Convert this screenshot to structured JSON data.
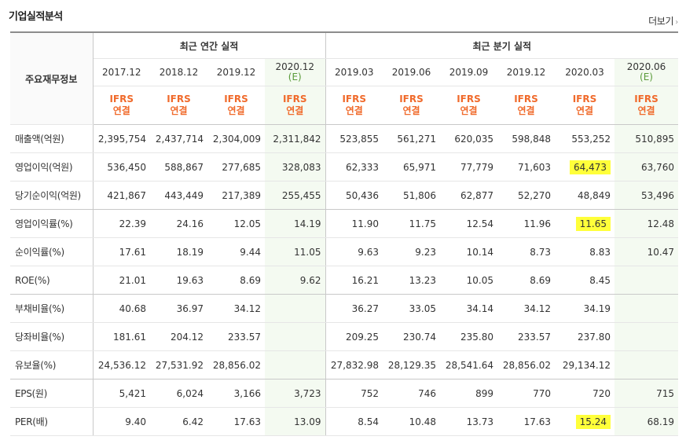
{
  "title": "기업실적분석",
  "more_label": "더보기",
  "header": {
    "row_label": "주요재무정보",
    "annual_label": "최근 연간 실적",
    "quarter_label": "최근 분기 실적",
    "columns": [
      {
        "date": "2017.12",
        "est": "",
        "ifrs": "IFRS",
        "type": "연결"
      },
      {
        "date": "2018.12",
        "est": "",
        "ifrs": "IFRS",
        "type": "연결"
      },
      {
        "date": "2019.12",
        "est": "",
        "ifrs": "IFRS",
        "type": "연결"
      },
      {
        "date": "2020.12",
        "est": "(E)",
        "ifrs": "IFRS",
        "type": "연결"
      },
      {
        "date": "2019.03",
        "est": "",
        "ifrs": "IFRS",
        "type": "연결"
      },
      {
        "date": "2019.06",
        "est": "",
        "ifrs": "IFRS",
        "type": "연결"
      },
      {
        "date": "2019.09",
        "est": "",
        "ifrs": "IFRS",
        "type": "연결"
      },
      {
        "date": "2019.12",
        "est": "",
        "ifrs": "IFRS",
        "type": "연결"
      },
      {
        "date": "2020.03",
        "est": "",
        "ifrs": "IFRS",
        "type": "연결"
      },
      {
        "date": "2020.06",
        "est": "(E)",
        "ifrs": "IFRS",
        "type": "연결"
      }
    ]
  },
  "rows": [
    {
      "label": "매출액(억원)",
      "values": [
        "2,395,754",
        "2,437,714",
        "2,304,009",
        "2,311,842",
        "523,855",
        "561,271",
        "620,035",
        "598,848",
        "553,252",
        "510,895"
      ]
    },
    {
      "label": "영업이익(억원)",
      "values": [
        "536,450",
        "588,867",
        "277,685",
        "328,083",
        "62,333",
        "65,971",
        "77,779",
        "71,603",
        "64,473",
        "63,760"
      ]
    },
    {
      "label": "당기순이익(억원)",
      "values": [
        "421,867",
        "443,449",
        "217,389",
        "255,455",
        "50,436",
        "51,806",
        "62,877",
        "52,270",
        "48,849",
        "53,496"
      ]
    },
    {
      "label": "영업이익률(%)",
      "values": [
        "22.39",
        "24.16",
        "12.05",
        "14.19",
        "11.90",
        "11.75",
        "12.54",
        "11.96",
        "11.65",
        "12.48"
      ]
    },
    {
      "label": "순이익률(%)",
      "values": [
        "17.61",
        "18.19",
        "9.44",
        "11.05",
        "9.63",
        "9.23",
        "10.14",
        "8.73",
        "8.83",
        "10.47"
      ]
    },
    {
      "label": "ROE(%)",
      "values": [
        "21.01",
        "19.63",
        "8.69",
        "9.62",
        "16.21",
        "13.23",
        "10.05",
        "8.69",
        "8.45",
        ""
      ]
    },
    {
      "label": "부채비율(%)",
      "values": [
        "40.68",
        "36.97",
        "34.12",
        "",
        "36.27",
        "33.05",
        "34.14",
        "34.12",
        "34.19",
        ""
      ]
    },
    {
      "label": "당좌비율(%)",
      "values": [
        "181.61",
        "204.12",
        "233.57",
        "",
        "209.25",
        "230.74",
        "235.80",
        "233.57",
        "237.80",
        ""
      ]
    },
    {
      "label": "유보율(%)",
      "values": [
        "24,536.12",
        "27,531.92",
        "28,856.02",
        "",
        "27,832.98",
        "28,129.35",
        "28,541.64",
        "28,856.02",
        "29,134.12",
        ""
      ]
    },
    {
      "label": "EPS(원)",
      "values": [
        "5,421",
        "6,024",
        "3,166",
        "3,723",
        "752",
        "746",
        "899",
        "770",
        "720",
        "715"
      ]
    },
    {
      "label": "PER(배)",
      "values": [
        "9.40",
        "6.42",
        "17.63",
        "13.09",
        "8.54",
        "10.48",
        "13.73",
        "17.63",
        "15.24",
        "68.19"
      ]
    }
  ],
  "highlight_color": "#ffff3a"
}
